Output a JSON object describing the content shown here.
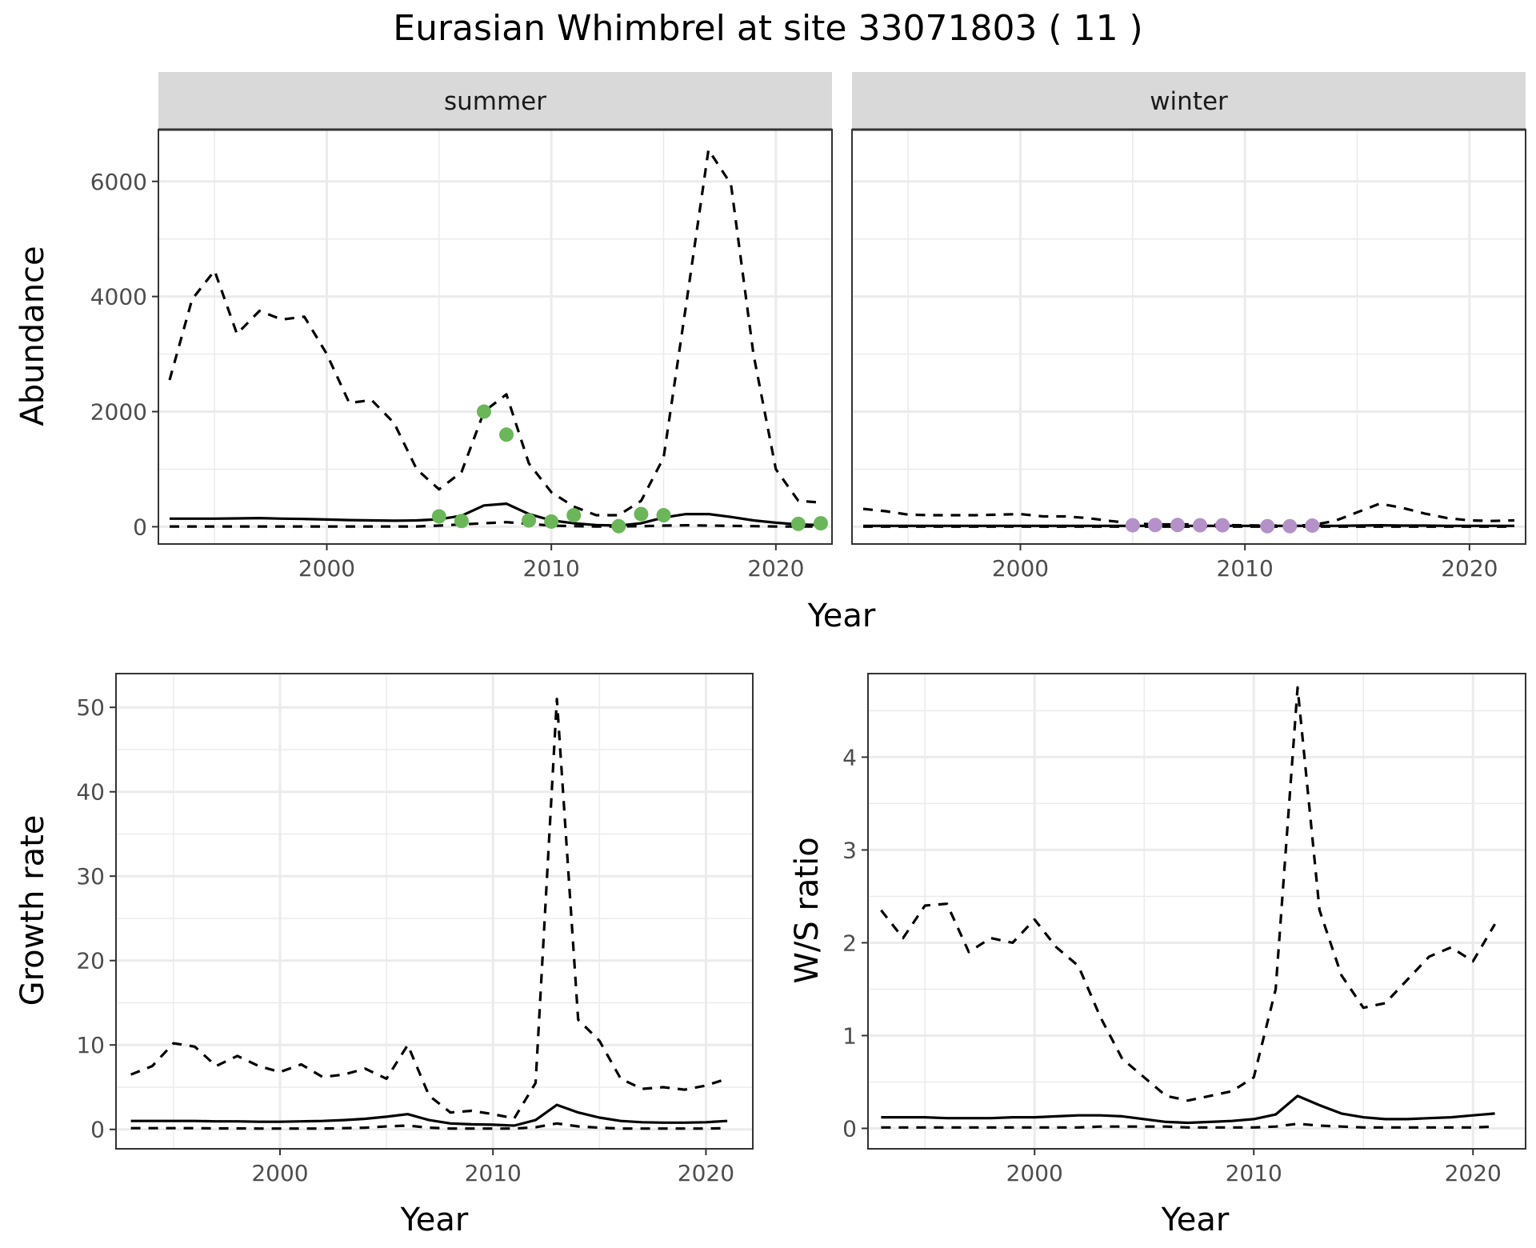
{
  "title": "Eurasian Whimbrel at site 33071803 ( 11 )",
  "colors": {
    "summer_points": "#6ab659",
    "winter_points": "#b491c8",
    "lines": "#000000",
    "strip_fill": "#d9d9d9",
    "grid": "#ebebeb",
    "panel_border": "#333333"
  },
  "chart_data": [
    {
      "id": "abundance-summer",
      "type": "line",
      "facet": "summer",
      "xlabel": "Year",
      "ylabel": "Abundance",
      "xlim": [
        1992.5,
        2022.5
      ],
      "ylim": [
        -300,
        6900
      ],
      "xticks": [
        2000,
        2010,
        2020
      ],
      "yticks": [
        0,
        2000,
        4000,
        6000
      ],
      "grid": true,
      "series": [
        {
          "style": "upper-dashed",
          "x": [
            1993,
            1994,
            1995,
            1996,
            1997,
            1998,
            1999,
            2000,
            2001,
            2002,
            2003,
            2004,
            2005,
            2006,
            2007,
            2008,
            2009,
            2010,
            2011,
            2012,
            2013,
            2014,
            2015,
            2016,
            2017,
            2018,
            2019,
            2020,
            2021,
            2022
          ],
          "y": [
            2550,
            3950,
            4450,
            3350,
            3750,
            3600,
            3650,
            3000,
            2150,
            2200,
            1800,
            1000,
            650,
            950,
            2000,
            2300,
            1100,
            600,
            350,
            200,
            200,
            450,
            1200,
            3850,
            6550,
            5950,
            3000,
            1000,
            450,
            420
          ]
        },
        {
          "style": "median-solid",
          "x": [
            1993,
            1994,
            1995,
            1996,
            1997,
            1998,
            1999,
            2000,
            2001,
            2002,
            2003,
            2004,
            2005,
            2006,
            2007,
            2008,
            2009,
            2010,
            2011,
            2012,
            2013,
            2014,
            2015,
            2016,
            2017,
            2018,
            2019,
            2020,
            2021,
            2022
          ],
          "y": [
            140,
            140,
            140,
            145,
            150,
            140,
            135,
            125,
            115,
            110,
            105,
            110,
            130,
            190,
            370,
            400,
            220,
            110,
            60,
            30,
            20,
            60,
            160,
            220,
            220,
            170,
            110,
            70,
            40,
            30
          ]
        },
        {
          "style": "lower-dashed",
          "x": [
            1993,
            1994,
            1995,
            1996,
            1997,
            1998,
            1999,
            2000,
            2001,
            2002,
            2003,
            2004,
            2005,
            2006,
            2007,
            2008,
            2009,
            2010,
            2011,
            2012,
            2013,
            2014,
            2015,
            2016,
            2017,
            2018,
            2019,
            2020,
            2021,
            2022
          ],
          "y": [
            5,
            5,
            5,
            5,
            5,
            5,
            5,
            5,
            5,
            5,
            5,
            5,
            20,
            40,
            60,
            80,
            50,
            20,
            10,
            5,
            5,
            10,
            20,
            25,
            20,
            15,
            10,
            5,
            5,
            5
          ]
        },
        {
          "style": "points",
          "x": [
            2005,
            2006,
            2007,
            2008,
            2009,
            2010,
            2011,
            2013,
            2014,
            2015,
            2021,
            2022
          ],
          "y": [
            180,
            100,
            2000,
            1600,
            110,
            90,
            200,
            10,
            220,
            200,
            50,
            60
          ]
        }
      ]
    },
    {
      "id": "abundance-winter",
      "type": "line",
      "facet": "winter",
      "xlabel": "Year",
      "ylabel": "Abundance",
      "xlim": [
        1992.5,
        2022.5
      ],
      "ylim": [
        -300,
        6900
      ],
      "xticks": [
        2000,
        2010,
        2020
      ],
      "yticks": [
        0,
        2000,
        4000,
        6000
      ],
      "grid": true,
      "series": [
        {
          "style": "upper-dashed",
          "x": [
            1993,
            1994,
            1995,
            1996,
            1997,
            1998,
            1999,
            2000,
            2001,
            2002,
            2003,
            2004,
            2005,
            2006,
            2007,
            2008,
            2009,
            2010,
            2011,
            2012,
            2013,
            2014,
            2015,
            2016,
            2017,
            2018,
            2019,
            2020,
            2021,
            2022
          ],
          "y": [
            310,
            270,
            210,
            200,
            200,
            200,
            210,
            220,
            180,
            180,
            150,
            100,
            60,
            40,
            40,
            40,
            30,
            25,
            20,
            20,
            30,
            100,
            250,
            400,
            330,
            230,
            150,
            110,
            100,
            110
          ]
        },
        {
          "style": "median-solid",
          "x": [
            1993,
            1994,
            1995,
            1996,
            1997,
            1998,
            1999,
            2000,
            2001,
            2002,
            2003,
            2004,
            2005,
            2006,
            2007,
            2008,
            2009,
            2010,
            2011,
            2012,
            2013,
            2014,
            2015,
            2016,
            2017,
            2018,
            2019,
            2020,
            2021,
            2022
          ],
          "y": [
            15,
            15,
            15,
            15,
            15,
            15,
            15,
            15,
            15,
            15,
            15,
            15,
            15,
            15,
            15,
            15,
            15,
            15,
            15,
            15,
            15,
            15,
            20,
            25,
            20,
            20,
            15,
            15,
            15,
            15
          ]
        },
        {
          "style": "lower-dashed",
          "x": [
            1993,
            1994,
            1995,
            1996,
            1997,
            1998,
            1999,
            2000,
            2001,
            2002,
            2003,
            2004,
            2005,
            2006,
            2007,
            2008,
            2009,
            2010,
            2011,
            2012,
            2013,
            2014,
            2015,
            2016,
            2017,
            2018,
            2019,
            2020,
            2021,
            2022
          ],
          "y": [
            2,
            2,
            2,
            2,
            2,
            2,
            2,
            2,
            2,
            2,
            2,
            2,
            2,
            2,
            2,
            2,
            2,
            2,
            2,
            2,
            2,
            2,
            2,
            2,
            2,
            2,
            2,
            2,
            2,
            2
          ]
        },
        {
          "style": "points",
          "x": [
            2005,
            2006,
            2007,
            2008,
            2009,
            2011,
            2012,
            2013
          ],
          "y": [
            25,
            30,
            30,
            25,
            25,
            10,
            10,
            20
          ]
        }
      ]
    },
    {
      "id": "growth-rate",
      "type": "line",
      "xlabel": "Year",
      "ylabel": "Growth rate",
      "xlim": [
        1992.3,
        2022.2
      ],
      "ylim": [
        -2.3,
        54
      ],
      "xticks": [
        2000,
        2010,
        2020
      ],
      "yticks": [
        0,
        10,
        20,
        30,
        40,
        50
      ],
      "grid": true,
      "series": [
        {
          "style": "upper-dashed",
          "x": [
            1993,
            1994,
            1995,
            1996,
            1997,
            1998,
            1999,
            2000,
            2001,
            2002,
            2003,
            2004,
            2005,
            2006,
            2007,
            2008,
            2009,
            2010,
            2011,
            2012,
            2013,
            2014,
            2015,
            2016,
            2017,
            2018,
            2019,
            2020,
            2021
          ],
          "y": [
            6.5,
            7.5,
            10.2,
            9.8,
            7.5,
            8.7,
            7.5,
            6.8,
            7.7,
            6.2,
            6.5,
            7.2,
            6.0,
            10.0,
            4.0,
            2.0,
            2.2,
            1.8,
            1.3,
            5.5,
            51.0,
            13.0,
            10.5,
            6.0,
            4.8,
            5.0,
            4.7,
            5.2,
            6.0
          ]
        },
        {
          "style": "median-solid",
          "x": [
            1993,
            1994,
            1995,
            1996,
            1997,
            1998,
            1999,
            2000,
            2001,
            2002,
            2003,
            2004,
            2005,
            2006,
            2007,
            2008,
            2009,
            2010,
            2011,
            2012,
            2013,
            2014,
            2015,
            2016,
            2017,
            2018,
            2019,
            2020,
            2021
          ],
          "y": [
            1.0,
            1.0,
            1.0,
            1.0,
            0.95,
            0.95,
            0.9,
            0.9,
            0.95,
            1.0,
            1.1,
            1.25,
            1.5,
            1.8,
            1.1,
            0.7,
            0.6,
            0.55,
            0.45,
            1.1,
            2.9,
            2.0,
            1.4,
            1.0,
            0.85,
            0.8,
            0.8,
            0.85,
            1.0
          ]
        },
        {
          "style": "lower-dashed",
          "x": [
            1993,
            1994,
            1995,
            1996,
            1997,
            1998,
            1999,
            2000,
            2001,
            2002,
            2003,
            2004,
            2005,
            2006,
            2007,
            2008,
            2009,
            2010,
            2011,
            2012,
            2013,
            2014,
            2015,
            2016,
            2017,
            2018,
            2019,
            2020,
            2021
          ],
          "y": [
            0.15,
            0.15,
            0.15,
            0.15,
            0.12,
            0.12,
            0.1,
            0.1,
            0.1,
            0.1,
            0.15,
            0.2,
            0.35,
            0.45,
            0.2,
            0.1,
            0.1,
            0.1,
            0.1,
            0.25,
            0.7,
            0.35,
            0.2,
            0.1,
            0.1,
            0.1,
            0.1,
            0.1,
            0.15
          ]
        }
      ]
    },
    {
      "id": "ws-ratio",
      "type": "line",
      "xlabel": "Year",
      "ylabel": "W/S ratio",
      "xlim": [
        1992.4,
        2022.4
      ],
      "ylim": [
        -0.22,
        4.9
      ],
      "xticks": [
        2000,
        2010,
        2020
      ],
      "yticks": [
        0,
        1,
        2,
        3,
        4
      ],
      "grid": true,
      "series": [
        {
          "style": "upper-dashed",
          "x": [
            1993,
            1994,
            1995,
            1996,
            1997,
            1998,
            1999,
            2000,
            2001,
            2002,
            2003,
            2004,
            2005,
            2006,
            2007,
            2008,
            2009,
            2010,
            2011,
            2012,
            2013,
            2014,
            2015,
            2016,
            2017,
            2018,
            2019,
            2020,
            2021
          ],
          "y": [
            2.35,
            2.05,
            2.4,
            2.42,
            1.9,
            2.05,
            2.0,
            2.25,
            1.95,
            1.75,
            1.2,
            0.75,
            0.55,
            0.35,
            0.3,
            0.35,
            0.4,
            0.55,
            1.5,
            4.75,
            2.35,
            1.65,
            1.3,
            1.35,
            1.6,
            1.85,
            1.95,
            1.8,
            2.2
          ]
        },
        {
          "style": "median-solid",
          "x": [
            1993,
            1994,
            1995,
            1996,
            1997,
            1998,
            1999,
            2000,
            2001,
            2002,
            2003,
            2004,
            2005,
            2006,
            2007,
            2008,
            2009,
            2010,
            2011,
            2012,
            2013,
            2014,
            2015,
            2016,
            2017,
            2018,
            2019,
            2020,
            2021
          ],
          "y": [
            0.12,
            0.12,
            0.12,
            0.11,
            0.11,
            0.11,
            0.12,
            0.12,
            0.13,
            0.14,
            0.14,
            0.13,
            0.1,
            0.07,
            0.06,
            0.07,
            0.08,
            0.1,
            0.15,
            0.35,
            0.25,
            0.16,
            0.12,
            0.1,
            0.1,
            0.11,
            0.12,
            0.14,
            0.16
          ]
        },
        {
          "style": "lower-dashed",
          "x": [
            1993,
            1994,
            1995,
            1996,
            1997,
            1998,
            1999,
            2000,
            2001,
            2002,
            2003,
            2004,
            2005,
            2006,
            2007,
            2008,
            2009,
            2010,
            2011,
            2012,
            2013,
            2014,
            2015,
            2016,
            2017,
            2018,
            2019,
            2020,
            2021
          ],
          "y": [
            0.01,
            0.01,
            0.01,
            0.01,
            0.01,
            0.01,
            0.01,
            0.01,
            0.01,
            0.01,
            0.02,
            0.02,
            0.02,
            0.02,
            0.01,
            0.01,
            0.01,
            0.01,
            0.02,
            0.05,
            0.03,
            0.02,
            0.01,
            0.01,
            0.01,
            0.01,
            0.01,
            0.01,
            0.02
          ]
        }
      ]
    }
  ]
}
